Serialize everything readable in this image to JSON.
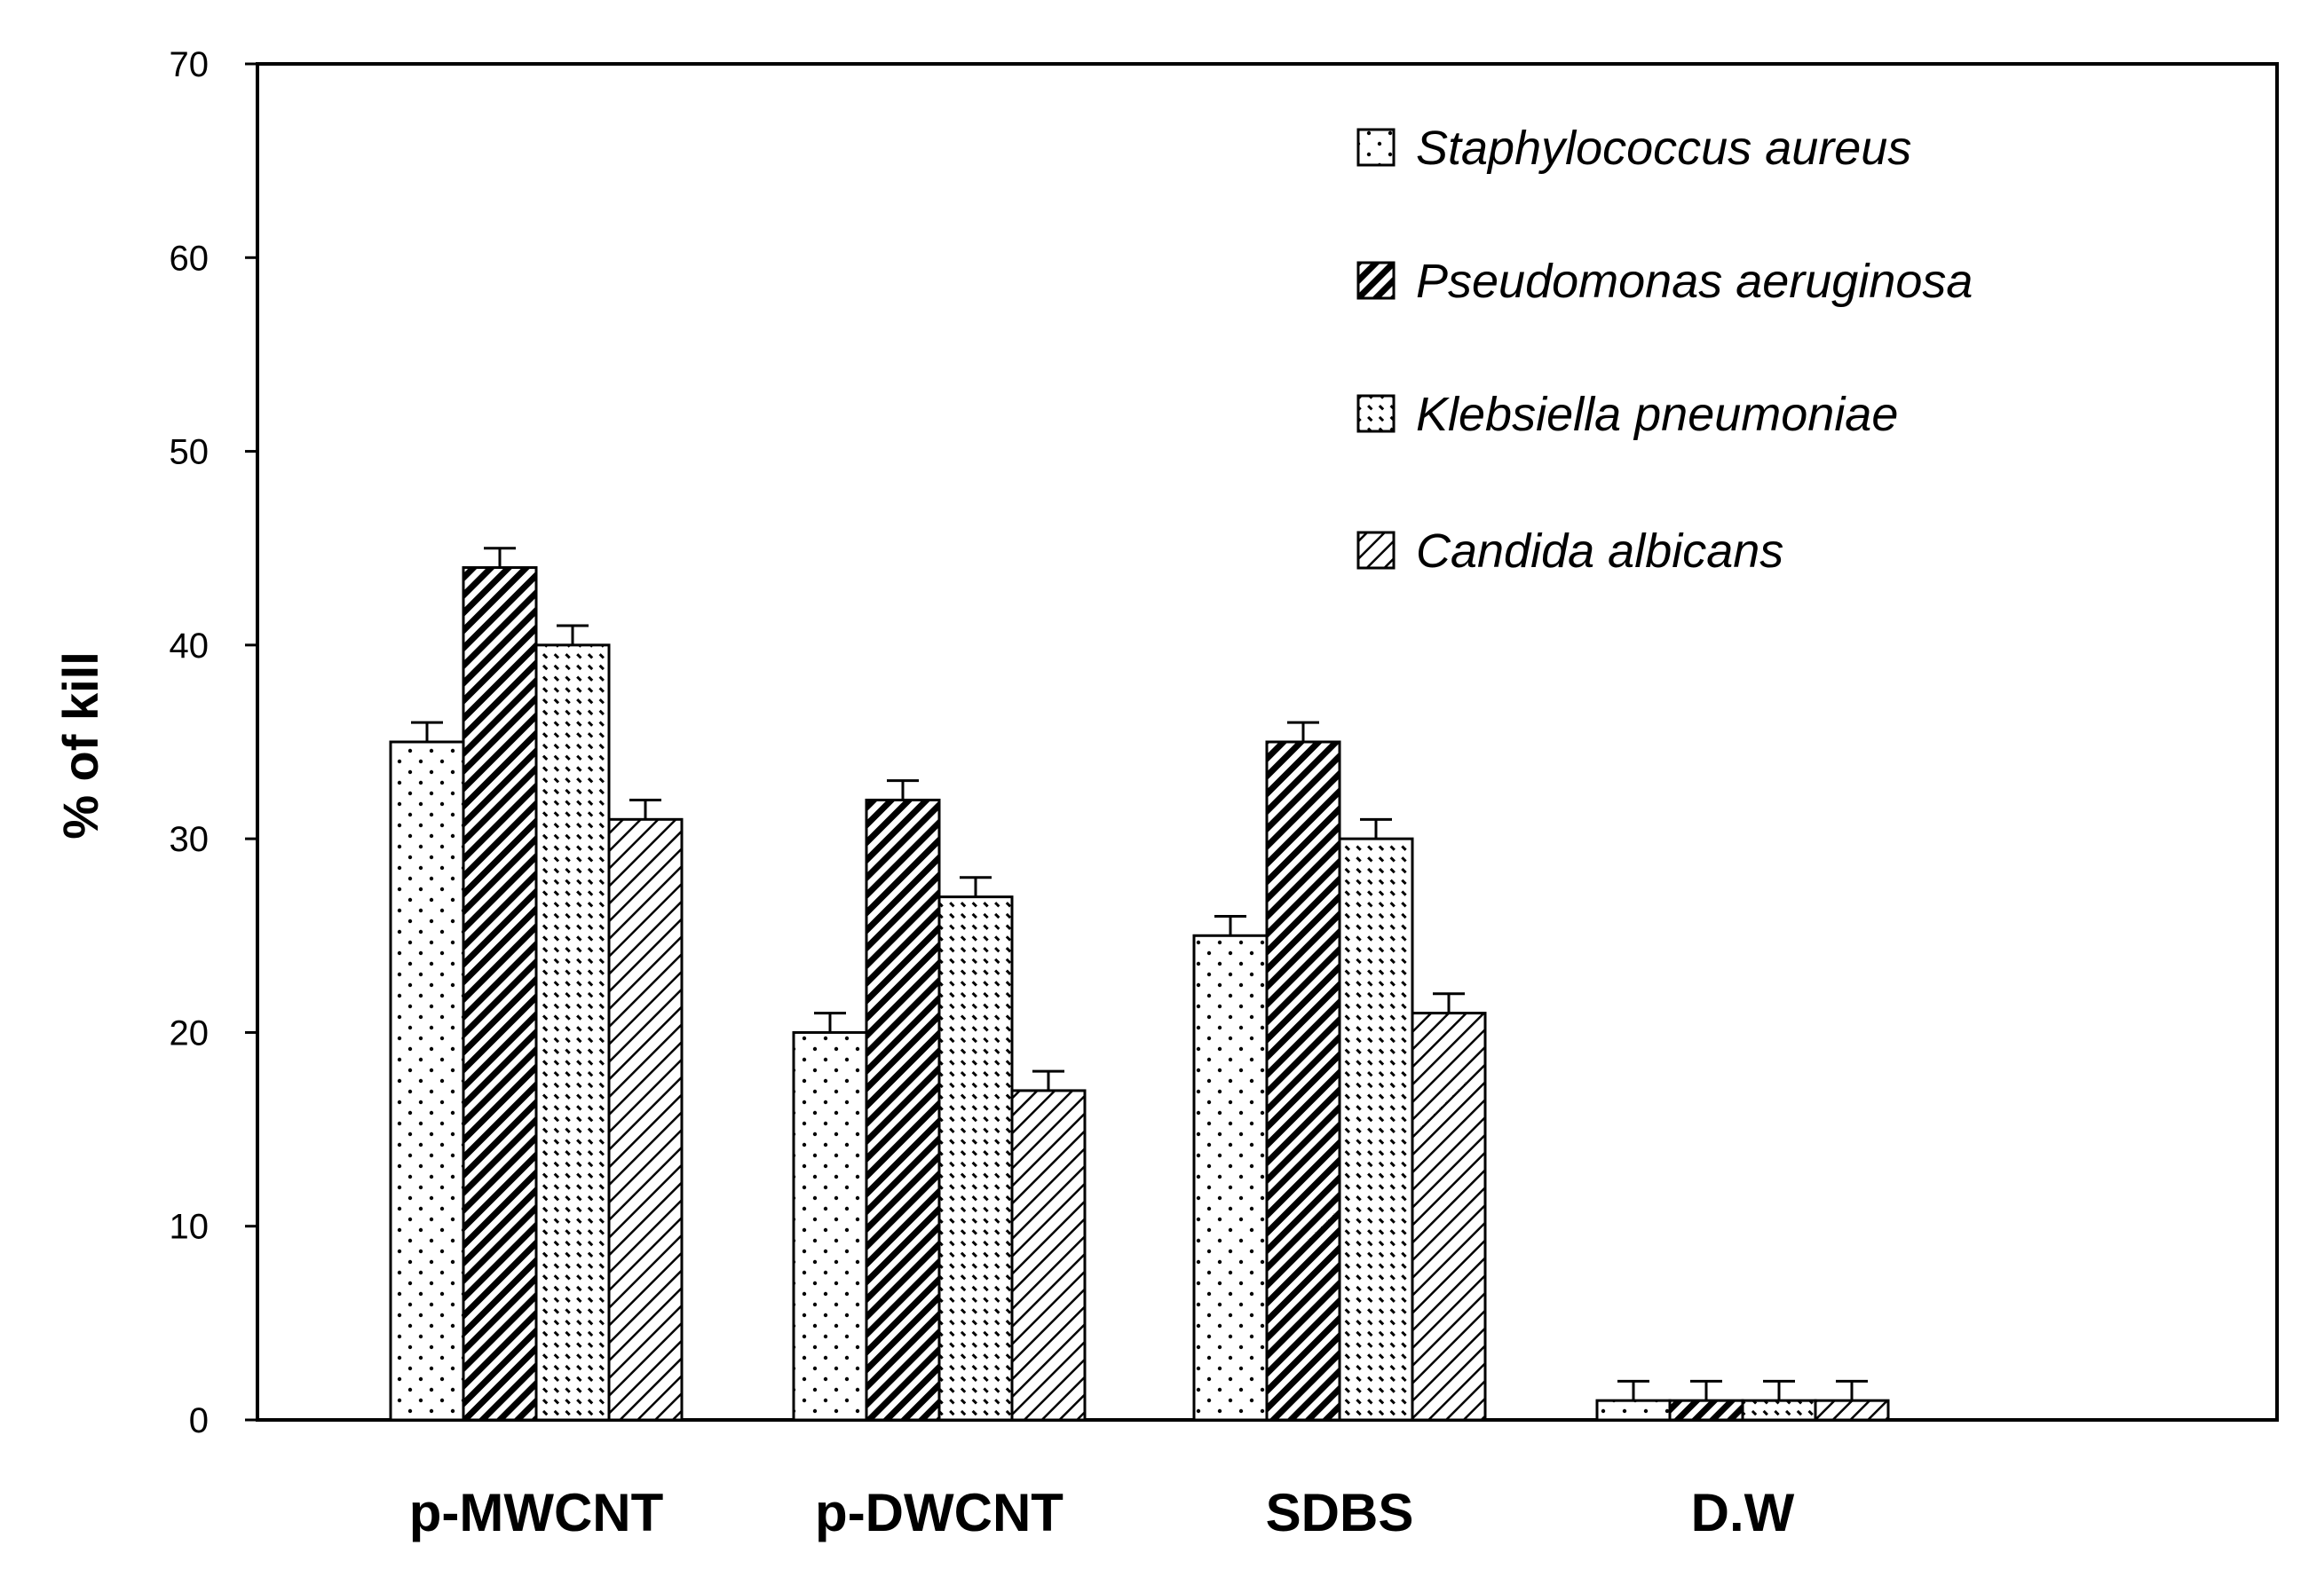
{
  "chart_data": {
    "type": "bar",
    "title": "",
    "xlabel": "",
    "ylabel": "% of kill",
    "ylim": [
      0,
      70
    ],
    "yticks": [
      0,
      10,
      20,
      30,
      40,
      50,
      60,
      70
    ],
    "grid": false,
    "legend_position": "top-right",
    "categories": [
      "p-MWCNT",
      "p-DWCNT",
      "SDBS",
      "D.W"
    ],
    "series": [
      {
        "name": "Staphylococcus aureus",
        "pattern": "dots",
        "values": [
          35,
          20,
          25,
          1
        ],
        "errors": [
          1,
          1,
          1,
          1
        ]
      },
      {
        "name": "Pseudomonas aeruginosa",
        "pattern": "dense-hatch",
        "values": [
          44,
          32,
          35,
          1
        ],
        "errors": [
          1,
          1,
          1,
          1
        ]
      },
      {
        "name": "Klebsiella pneumoniae",
        "pattern": "back-hatch",
        "values": [
          40,
          27,
          30,
          1
        ],
        "errors": [
          1,
          1,
          1,
          1
        ]
      },
      {
        "name": "Candida albicans",
        "pattern": "light-hatch",
        "values": [
          31,
          17,
          21,
          1
        ],
        "errors": [
          1,
          1,
          1,
          1
        ]
      }
    ]
  }
}
